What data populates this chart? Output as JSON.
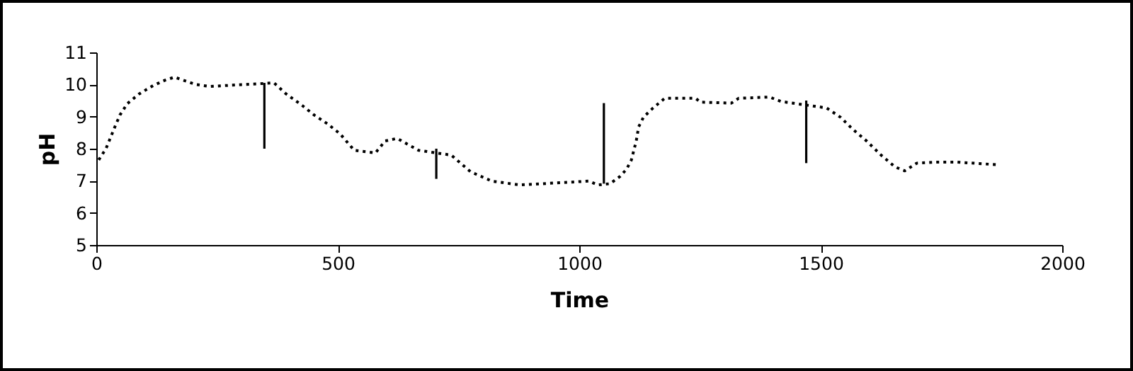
{
  "chart_data": {
    "type": "line",
    "xlabel": "Time",
    "ylabel": "pH",
    "xlim": [
      0,
      2000
    ],
    "xticks": [
      0,
      500,
      1000,
      1500,
      2000
    ],
    "ylim": [
      5,
      11
    ],
    "yticks": [
      5,
      6,
      7,
      8,
      9,
      10,
      11
    ],
    "grid": false,
    "marker": "none",
    "series": [
      {
        "color": "#000000",
        "line_style": "dotted",
        "x": [
          5,
          20,
          39,
          49,
          64,
          88,
          118,
          142,
          162,
          206,
          235,
          368,
          392,
          426,
          451,
          480,
          505,
          534,
          578,
          598,
          623,
          667,
          735,
          775,
          819,
          877,
          1020,
          1039,
          1064,
          1084,
          1098,
          1108,
          1118,
          1123,
          1133,
          1153,
          1177,
          1241,
          1251,
          1315,
          1330,
          1394,
          1418,
          1512,
          1541,
          1566,
          1595,
          1625,
          1654,
          1674,
          1699,
          1738,
          1782,
          1866
        ],
        "values": [
          7.65,
          8.0,
          8.7,
          9.05,
          9.4,
          9.7,
          9.97,
          10.13,
          10.23,
          10.0,
          9.94,
          10.05,
          9.72,
          9.35,
          9.05,
          8.76,
          8.46,
          7.95,
          7.87,
          8.24,
          8.32,
          7.95,
          7.8,
          7.28,
          6.99,
          6.87,
          6.99,
          6.87,
          6.91,
          7.13,
          7.36,
          7.65,
          8.24,
          8.68,
          8.98,
          9.27,
          9.57,
          9.57,
          9.45,
          9.42,
          9.57,
          9.61,
          9.47,
          9.27,
          8.98,
          8.61,
          8.24,
          7.8,
          7.43,
          7.31,
          7.55,
          7.58,
          7.58,
          7.5
        ]
      },
      {
        "color": "#000000",
        "line_style": "solid",
        "x": [
          348,
          348
        ],
        "values": [
          8.0,
          10.05
        ]
      },
      {
        "color": "#000000",
        "line_style": "solid",
        "x": [
          704,
          704
        ],
        "values": [
          7.06,
          8.0
        ]
      },
      {
        "color": "#000000",
        "line_style": "solid",
        "x": [
          1051,
          1051
        ],
        "values": [
          6.91,
          9.42
        ]
      },
      {
        "color": "#000000",
        "line_style": "solid",
        "x": [
          1470,
          1470
        ],
        "values": [
          7.55,
          9.5
        ]
      }
    ]
  }
}
